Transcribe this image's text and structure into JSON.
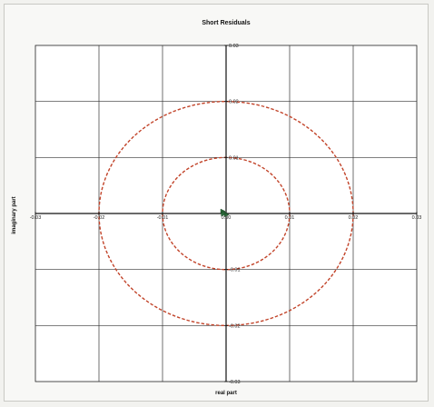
{
  "chart_data": {
    "type": "scatter",
    "title": "Short Residuals",
    "xlabel": "real part",
    "ylabel": "imaginary part",
    "xlim": [
      -0.03,
      0.03
    ],
    "ylim": [
      -0.03,
      0.03
    ],
    "x_ticks": [
      "-0.03",
      "-0.02",
      "-0.01",
      "0.00",
      "0.01",
      "0.02",
      "0.03"
    ],
    "y_ticks": [
      "-0.03",
      "-0.02",
      "-0.01",
      "0.00",
      "0.01",
      "0.02",
      "0.03"
    ],
    "tick_values": [
      -0.03,
      -0.02,
      -0.01,
      0,
      0.01,
      0.02,
      0.03
    ],
    "grid": true,
    "circles": [
      {
        "radius": 0.01,
        "color": "#c2442a",
        "style": "dashed"
      },
      {
        "radius": 0.02,
        "color": "#c2442a",
        "style": "dashed"
      }
    ],
    "points": [
      {
        "x": -0.0005,
        "y": 0.0004,
        "color": "#2a6b3a"
      },
      {
        "x": -0.0002,
        "y": 0.0001,
        "color": "#2a6b3a"
      },
      {
        "x": 0.0001,
        "y": -0.0002,
        "color": "#2a6b3a"
      },
      {
        "x": -0.0004,
        "y": -0.0001,
        "color": "#2a6b3a"
      }
    ]
  }
}
